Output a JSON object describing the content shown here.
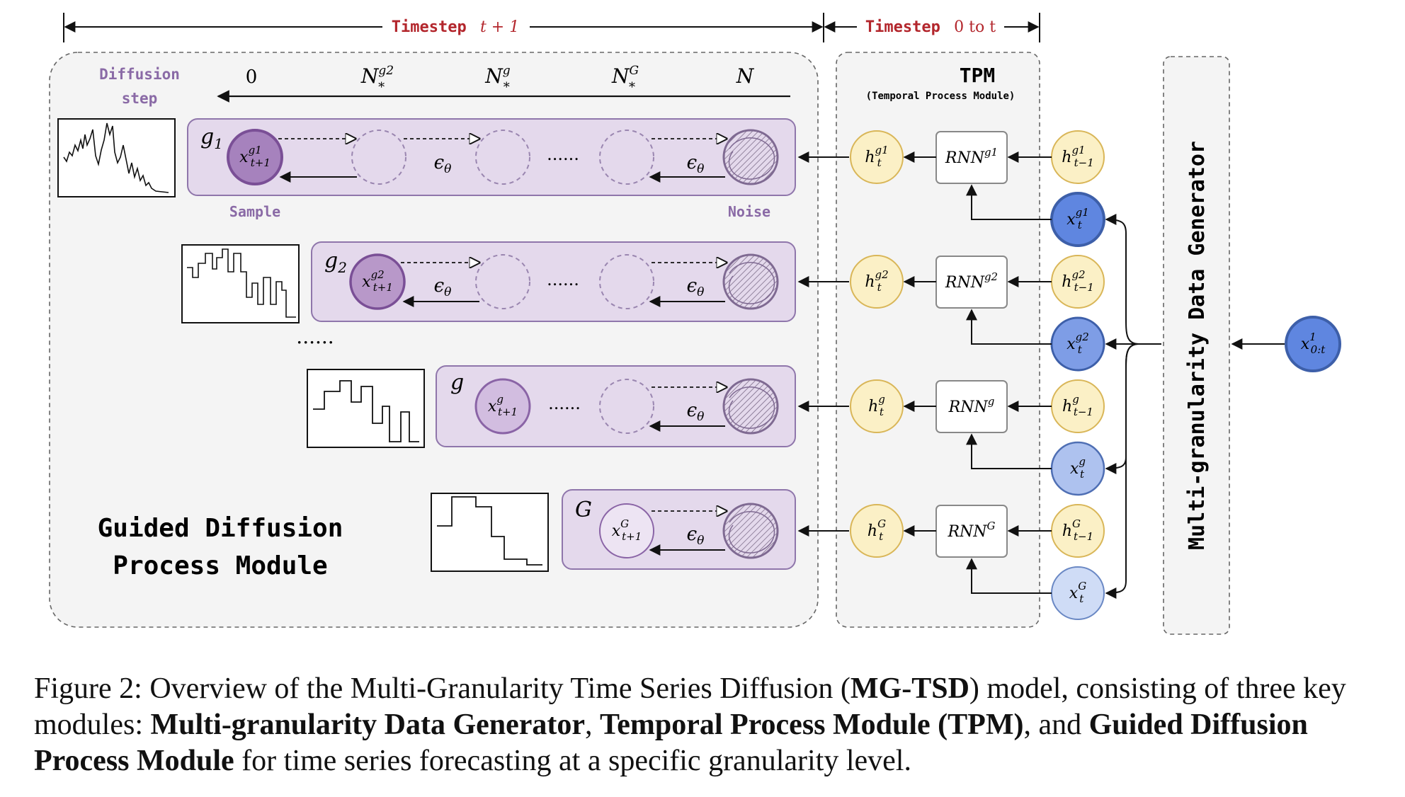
{
  "timestep": {
    "left_prefix": "Timestep",
    "left_var": "t + 1",
    "right_prefix": "Timestep",
    "right_var": "0 to t"
  },
  "diffusion_step": {
    "label_line1": "Diffusion",
    "label_line2": "step",
    "ticks": [
      "0",
      "N*g2",
      "N*g",
      "N*G",
      "N"
    ]
  },
  "rows": [
    {
      "group": "g1",
      "sample": "x t+1 g1",
      "hidden": "h t g1",
      "rnn": "RNN g1",
      "prev": "h t-1 g1",
      "input": "x t g1"
    },
    {
      "group": "g2",
      "sample": "x t+1 g2",
      "hidden": "h t g2",
      "rnn": "RNN g2",
      "prev": "h t-1 g2",
      "input": "x t g2"
    },
    {
      "group": "g",
      "sample": "x t+1 g",
      "hidden": "h t g",
      "rnn": "RNN g",
      "prev": "h t-1 g",
      "input": "x t g"
    },
    {
      "group": "G",
      "sample": "x t+1 G",
      "hidden": "h t G",
      "rnn": "RNN G",
      "prev": "h t-1 G",
      "input": "x t G"
    }
  ],
  "labels": {
    "sample": "Sample",
    "noise": "Noise",
    "epsilon": "ε",
    "epsilon_sub": "θ",
    "dots": "......",
    "gdpm_line1": "Guided Diffusion",
    "gdpm_line2": "Process Module",
    "tpm_title": "TPM",
    "tpm_subtitle": "(Temporal Process Module)",
    "generator": "Multi-granularity Data Generator",
    "source_input": "x 0:t 1"
  },
  "colors": {
    "row_fill": "#e4d9ec",
    "row_stroke": "#8f76ab",
    "sample_fill_dark": "#a682bd",
    "sample_stroke": "#7a4f96",
    "hidden_fill": "#fbf0c6",
    "hidden_stroke": "#d9b658",
    "input_blue_dark": "#5f86e0",
    "input_blue_light": "#cfdcf6",
    "input_stroke": "#3d5fa9",
    "module_bg": "#f4f4f4",
    "timestep_red": "#b3262c"
  },
  "caption": {
    "prefix": "Figure 2: Overview of the Multi-Granularity Time Series Diffusion (",
    "b1": "MG-TSD",
    "mid1": ") model, consisting of three key modules: ",
    "b2": "Multi-granularity Data Generator",
    "mid2": ", ",
    "b3": "Temporal Process Module (TPM)",
    "mid3": ", and ",
    "b4": "Guided Diffusion Process Module",
    "suffix": " for time series forecasting at a specific granularity level."
  }
}
